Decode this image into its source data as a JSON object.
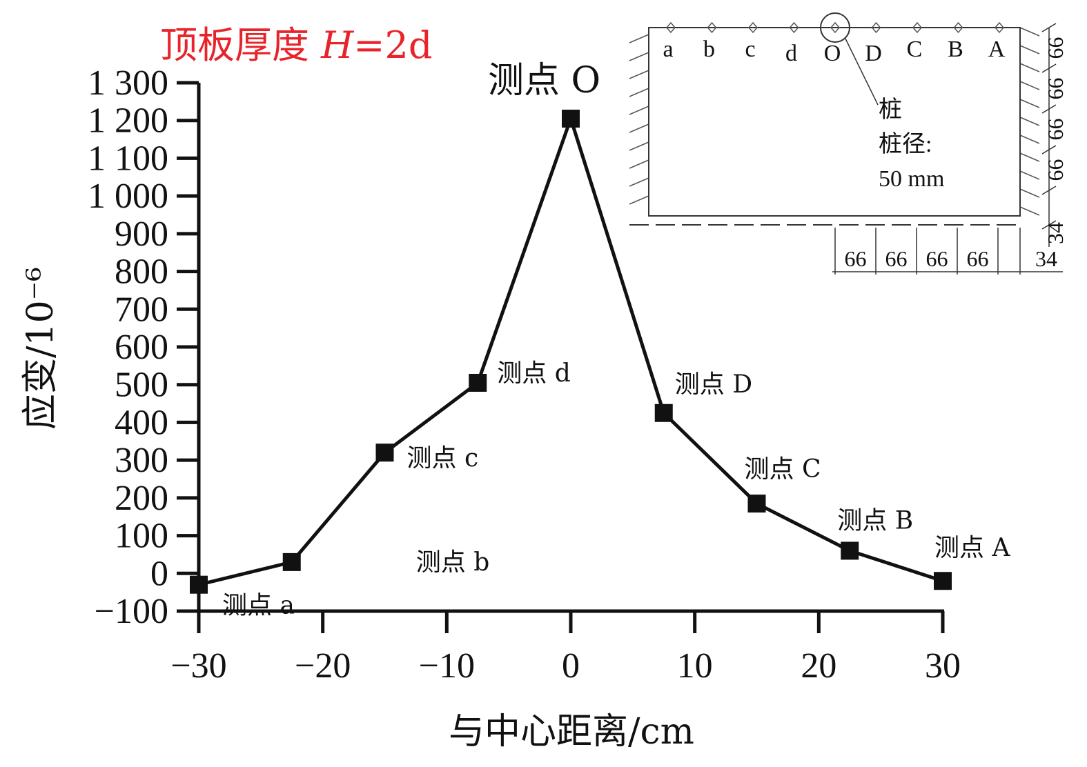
{
  "chart_data": {
    "type": "line",
    "title": "顶板厚度 H=2d",
    "xlabel": "与中心距离/cm",
    "ylabel": "应变/10⁻⁶",
    "xlim": [
      -30,
      30
    ],
    "ylim": [
      -100,
      1300
    ],
    "x_ticks": [
      "−30",
      "−20",
      "−10",
      "0",
      "10",
      "20",
      "30"
    ],
    "y_ticks": [
      "−100",
      "0",
      "100",
      "200",
      "300",
      "400",
      "500",
      "600",
      "700",
      "800",
      "900",
      "1 000",
      "1 100",
      "1 200",
      "1 300"
    ],
    "series": [
      {
        "points": [
          {
            "x": -30,
            "y": -30,
            "label": "测点 a"
          },
          {
            "x": -22.5,
            "y": 30,
            "label": "测点 b"
          },
          {
            "x": -15,
            "y": 320,
            "label": "测点 c"
          },
          {
            "x": -7.5,
            "y": 505,
            "label": "测点 d"
          },
          {
            "x": 0,
            "y": 1205,
            "label": "测点 O"
          },
          {
            "x": 7.5,
            "y": 425,
            "label": "测点 D"
          },
          {
            "x": 15,
            "y": 185,
            "label": "测点 C"
          },
          {
            "x": 22.5,
            "y": 60,
            "label": "测点 B"
          },
          {
            "x": 30,
            "y": -20,
            "label": "测点 A"
          }
        ]
      }
    ],
    "marker": "square",
    "line_color": "#111111",
    "title_color": "#e8232a",
    "grid": false,
    "legend": "none"
  },
  "inset": {
    "point_letters": [
      "a",
      "b",
      "c",
      "d",
      "O",
      "D",
      "C",
      "B",
      "A"
    ],
    "pile_label": "桩",
    "pile_diameter_label": "桩径:",
    "pile_diameter_value": "50 mm",
    "right_dims": [
      "66",
      "66",
      "66",
      "66",
      "34"
    ],
    "bottom_dims": [
      "66",
      "66",
      "66",
      "66",
      "34"
    ]
  }
}
